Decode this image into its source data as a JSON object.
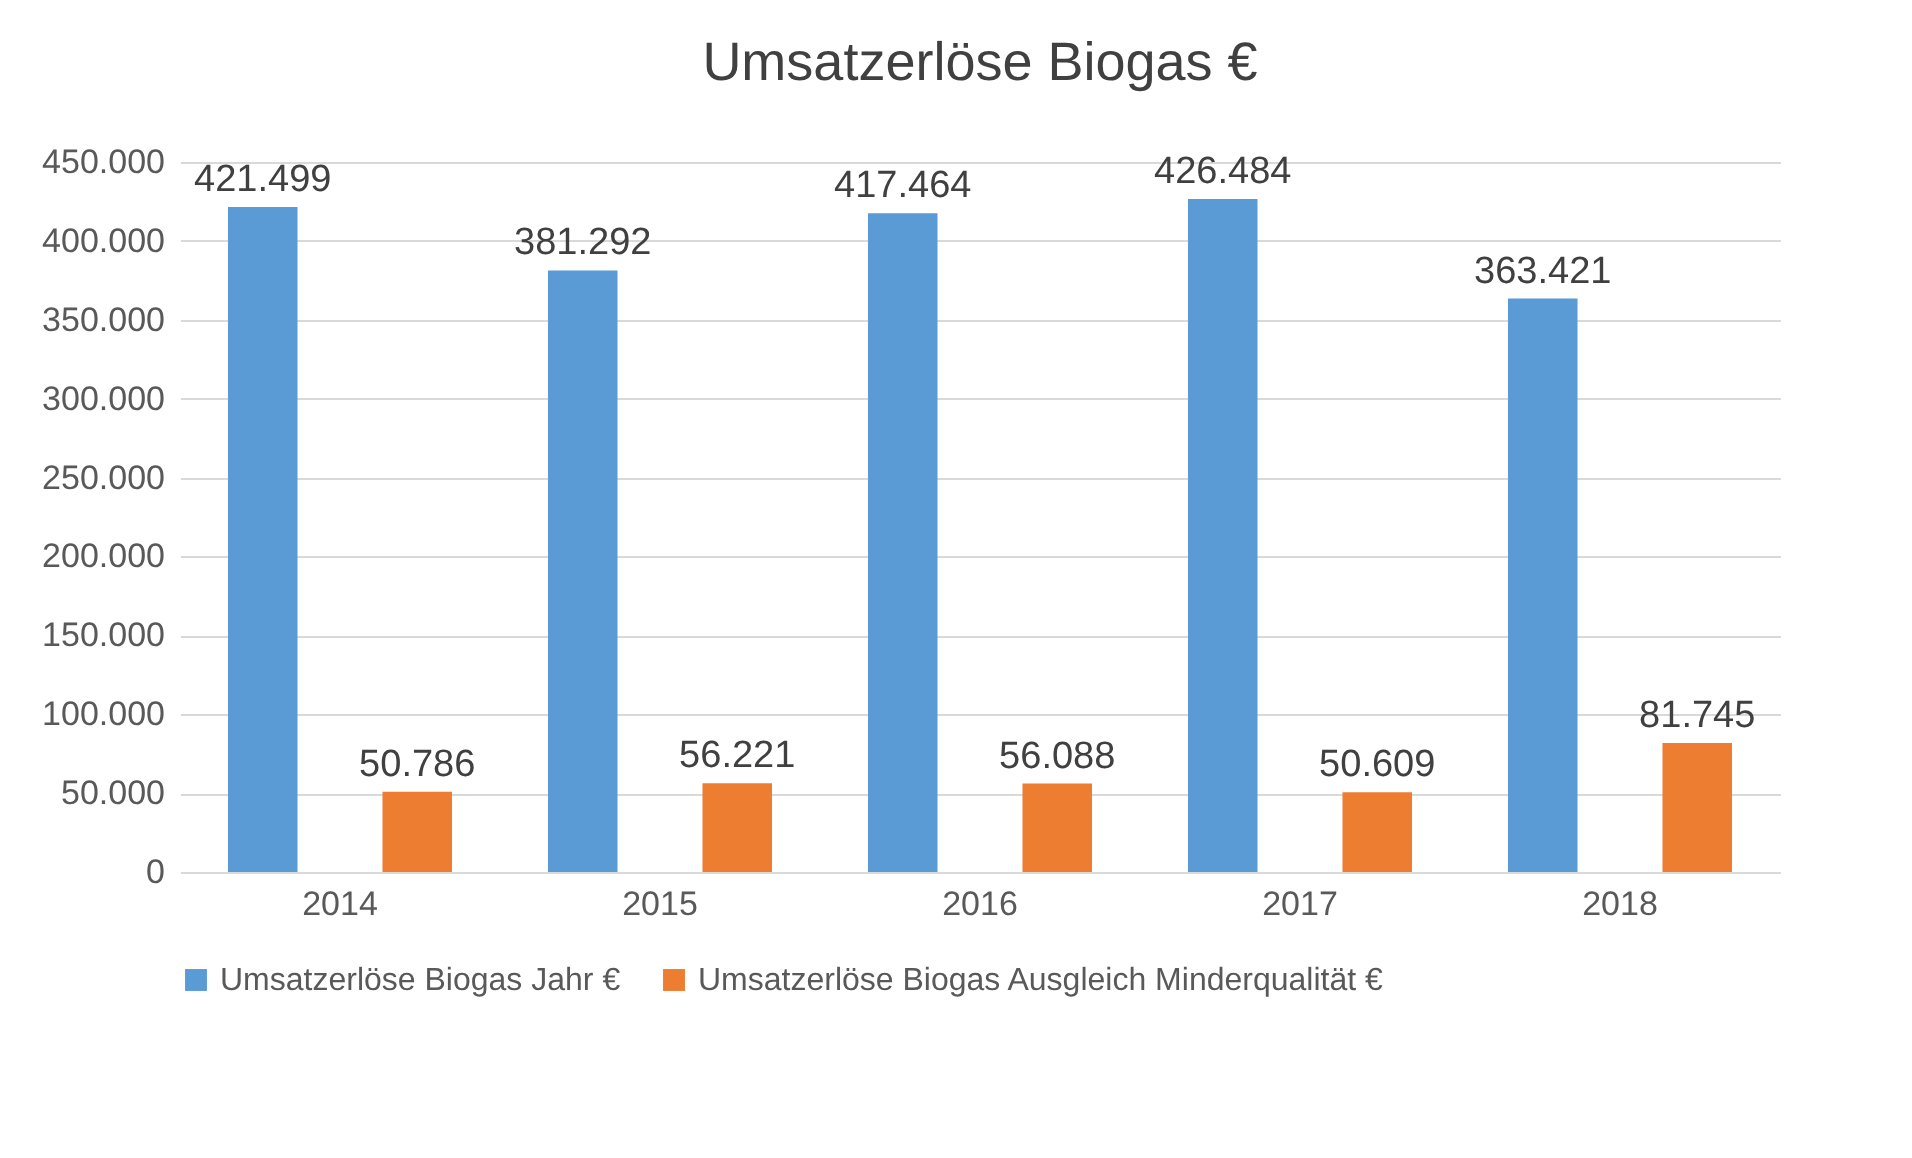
{
  "chart_data": {
    "type": "bar",
    "title": "Umsatzerlöse Biogas €",
    "categories": [
      "2014",
      "2015",
      "2016",
      "2017",
      "2018"
    ],
    "series": [
      {
        "name": "Umsatzerlöse Biogas Jahr €",
        "color": "#5b9bd5",
        "values": [
          421499,
          381292,
          417464,
          426484,
          363421
        ],
        "value_labels": [
          "421.499",
          "381.292",
          "417.464",
          "426.484",
          "363.421"
        ]
      },
      {
        "name": "Umsatzerlöse Biogas Ausgleich  Minderqualität €",
        "color": "#ed7d31",
        "values": [
          50786,
          56221,
          56088,
          50609,
          81745
        ],
        "value_labels": [
          "50.786",
          "56.221",
          "56.088",
          "50.609",
          "81.745"
        ]
      }
    ],
    "ylim": [
      0,
      450000
    ],
    "yticks": [
      0,
      {
        "value": 50000,
        "label": "50.000"
      },
      {
        "value": 100000,
        "label": "100.000"
      },
      {
        "value": 150000,
        "label": "150.000"
      },
      {
        "value": 200000,
        "label": "200.000"
      },
      {
        "value": 250000,
        "label": "250.000"
      },
      {
        "value": 300000,
        "label": "300.000"
      },
      {
        "value": 350000,
        "label": "350.000"
      },
      {
        "value": 400000,
        "label": "400.000"
      },
      {
        "value": 450000,
        "label": "450.000"
      }
    ],
    "grid": "y",
    "legend": "bottom"
  }
}
